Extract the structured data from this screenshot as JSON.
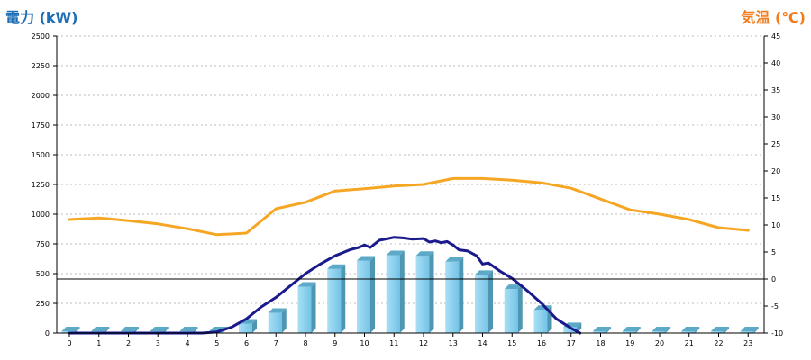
{
  "chart_data": {
    "type": "bar",
    "y_left_label": "電力 (kW)",
    "y_right_label": "気温 (℃)",
    "categories": [
      "0",
      "1",
      "2",
      "3",
      "4",
      "5",
      "6",
      "7",
      "8",
      "9",
      "10",
      "11",
      "12",
      "13",
      "14",
      "15",
      "16",
      "17",
      "18",
      "19",
      "20",
      "21",
      "22",
      "23"
    ],
    "ylim_left": [
      0,
      2500
    ],
    "yticks_left": [
      0,
      250,
      500,
      750,
      1000,
      1250,
      1500,
      1750,
      2000,
      2250,
      2500
    ],
    "ylim_right": [
      -10,
      45
    ],
    "yticks_right": [
      -10,
      -5,
      0,
      5,
      10,
      15,
      20,
      25,
      30,
      35,
      40,
      45
    ],
    "grid": true,
    "series": [
      {
        "kind": "bar",
        "axis": "left",
        "color": "#87ceeb",
        "values": [
          0,
          0,
          0,
          0,
          0,
          0,
          80,
          170,
          390,
          540,
          610,
          655,
          650,
          600,
          490,
          370,
          195,
          50,
          0,
          0,
          0,
          0,
          0,
          0
        ]
      },
      {
        "kind": "line",
        "axis": "left",
        "color": "#1a1a8c",
        "x": [
          0,
          4.5,
          5,
          5.5,
          6,
          6.5,
          7,
          7.5,
          8,
          8.5,
          9,
          9.5,
          9.8,
          10.0,
          10.2,
          10.5,
          10.8,
          11.0,
          11.3,
          11.6,
          12.0,
          12.2,
          12.4,
          12.6,
          12.8,
          13.0,
          13.2,
          13.5,
          13.8,
          14.0,
          14.2,
          14.6,
          15.0,
          15.5,
          16.0,
          16.5,
          17.0,
          17.3
        ],
        "values": [
          0,
          0,
          10,
          50,
          120,
          220,
          300,
          400,
          500,
          580,
          650,
          700,
          720,
          740,
          720,
          780,
          795,
          805,
          800,
          790,
          795,
          765,
          775,
          760,
          770,
          740,
          700,
          690,
          650,
          580,
          590,
          520,
          460,
          360,
          250,
          120,
          40,
          0
        ]
      },
      {
        "kind": "line",
        "axis": "right",
        "color": "#f5a623",
        "x": [
          0,
          1,
          2,
          3,
          4,
          5,
          6,
          7,
          8,
          9,
          10,
          11,
          12,
          13,
          14,
          15,
          16,
          17,
          18,
          19,
          20,
          21,
          22,
          23
        ],
        "values": [
          11,
          11.3,
          10.8,
          10.2,
          9.3,
          8.2,
          8.5,
          13,
          14.2,
          16.3,
          16.7,
          17.2,
          17.5,
          18.6,
          18.6,
          18.3,
          17.8,
          16.8,
          14.8,
          12.8,
          12.0,
          11.0,
          9.5,
          9.0
        ]
      }
    ]
  }
}
